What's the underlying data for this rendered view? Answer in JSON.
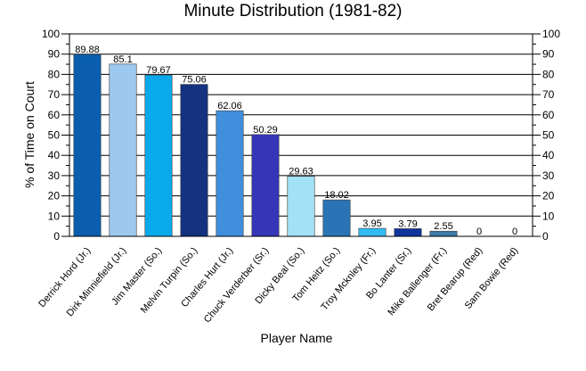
{
  "chart_data": {
    "type": "bar",
    "title": "Minute Distribution (1981-82)",
    "xlabel": "Player Name",
    "ylabel": "% of Time on Court",
    "ylim": [
      0,
      100
    ],
    "yticks": [
      0,
      10,
      20,
      30,
      40,
      50,
      60,
      70,
      80,
      90,
      100
    ],
    "grid": true,
    "right_axis": true,
    "categories": [
      "Derrick Hord (Jr.)",
      "Dirk Minniefield (Jr.)",
      "Jim Master (So.)",
      "Melvin Turpin (So.)",
      "Charles Hurt (Jr.)",
      "Chuck Verderber (Sr.)",
      "Dicky Beal (So.)",
      "Tom Heitz (So.)",
      "Troy Mcknley (Fr.)",
      "Bo Lanter (Sr.)",
      "Mike Ballenger (Fr.)",
      "Bret Bearup (Red)",
      "Sam Bowie (Red)"
    ],
    "values": [
      89.88,
      85.1,
      79.67,
      75.06,
      62.06,
      50.29,
      29.63,
      18.02,
      3.95,
      3.79,
      2.55,
      0,
      0
    ],
    "value_labels": [
      "89.88",
      "85.1",
      "79.67",
      "75.06",
      "62.06",
      "50.29",
      "29.63",
      "18.02",
      "3.95",
      "3.79",
      "2.55",
      "0",
      "0"
    ],
    "colors": [
      "#0a5ead",
      "#9dc8ef",
      "#0aaaea",
      "#14327f",
      "#3f8fdd",
      "#3535b8",
      "#a3e1f7",
      "#2a74b5",
      "#33bbf1",
      "#10359e",
      "#3c7aa9",
      "#4d8fd6",
      "#4c9ae0"
    ]
  }
}
